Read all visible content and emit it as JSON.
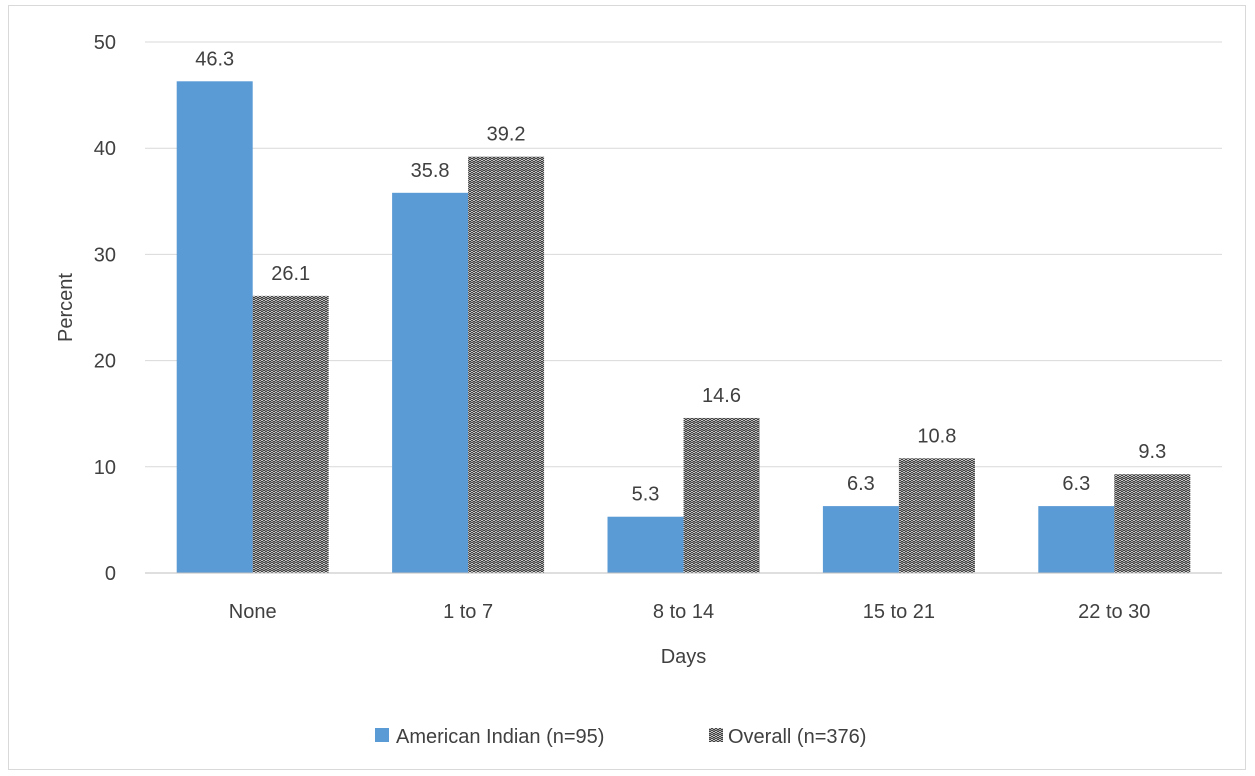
{
  "chart_data": {
    "type": "bar",
    "title": "",
    "xlabel": "Days",
    "ylabel": "Percent",
    "ylim": [
      0,
      50
    ],
    "yticks": [
      0,
      10,
      20,
      30,
      40,
      50
    ],
    "grid": true,
    "legend_position": "bottom",
    "categories": [
      "None",
      "1 to 7",
      "8 to 14",
      "15 to 21",
      "22 to 30"
    ],
    "series": [
      {
        "name": "American Indian (n=95)",
        "values": [
          46.3,
          35.8,
          5.3,
          6.3,
          6.3
        ],
        "labels": [
          "46.3",
          "35.8",
          "5.3",
          "6.3",
          "6.3"
        ],
        "color": "#5b9bd5",
        "fill_style": "solid"
      },
      {
        "name": "Overall (n=376)",
        "values": [
          26.1,
          39.2,
          14.6,
          10.8,
          9.3
        ],
        "labels": [
          "26.1",
          "39.2",
          "14.6",
          "10.8",
          "9.3"
        ],
        "color": "#3a3a3a",
        "fill_style": "zigzag-pattern"
      }
    ]
  },
  "colors": {
    "text": "#404040",
    "gridline": "#d9d9d9",
    "axis": "#bfbfbf",
    "series1": "#5b9bd5",
    "series2_dark": "#3a3a3a"
  }
}
